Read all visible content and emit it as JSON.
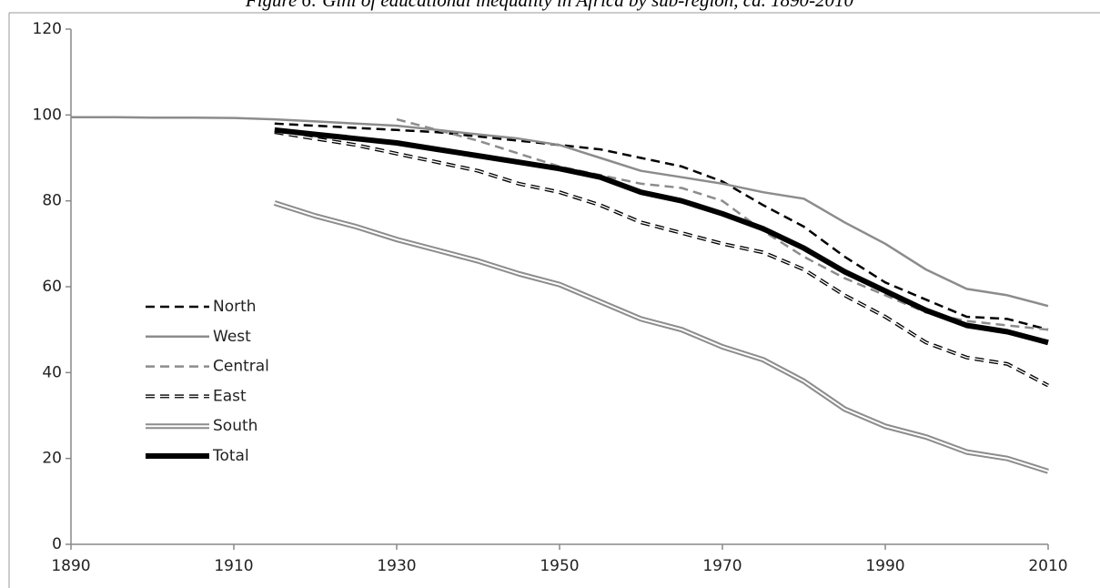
{
  "chart_data": {
    "type": "line",
    "title": "Figure 6: Gini of educational inequality in Africa by sub-region, ca. 1890-2010",
    "x": [
      1890,
      1895,
      1900,
      1905,
      1910,
      1915,
      1920,
      1925,
      1930,
      1935,
      1940,
      1945,
      1950,
      1955,
      1960,
      1965,
      1970,
      1975,
      1980,
      1985,
      1990,
      1995,
      2000,
      2005,
      2010
    ],
    "xlim": [
      1890,
      2010
    ],
    "xticks": [
      1890,
      1910,
      1930,
      1950,
      1970,
      1990,
      2010
    ],
    "ylim": [
      0,
      120
    ],
    "yticks": [
      0,
      20,
      40,
      60,
      80,
      100,
      120
    ],
    "legend": "left",
    "series": [
      {
        "name": "North",
        "color": "#000000",
        "width": 2.5,
        "dash": true,
        "double": false,
        "values": [
          null,
          null,
          null,
          null,
          null,
          98,
          97.5,
          97,
          96.5,
          96,
          95,
          94,
          93,
          92,
          90,
          88,
          84.5,
          79,
          74,
          67,
          61,
          57,
          53,
          52.5,
          50
        ]
      },
      {
        "name": "West",
        "color": "#8c8c8c",
        "width": 2.5,
        "dash": false,
        "double": false,
        "values": [
          99.5,
          99.5,
          99.4,
          99.4,
          99.3,
          99,
          98.5,
          98,
          97.5,
          96.5,
          95.5,
          94.5,
          93,
          90,
          87,
          85.5,
          84,
          82,
          80.5,
          75,
          70,
          64,
          59.5,
          58,
          55.5
        ]
      },
      {
        "name": "Central",
        "color": "#8c8c8c",
        "width": 2.5,
        "dash": true,
        "double": false,
        "values": [
          null,
          null,
          null,
          null,
          null,
          null,
          null,
          null,
          99,
          96.5,
          94,
          91,
          88,
          86,
          84,
          83,
          80,
          73,
          67,
          62,
          58,
          54,
          52,
          51,
          50
        ]
      },
      {
        "name": "East",
        "color": "#000000",
        "width": 4,
        "dash": true,
        "double": true,
        "values": [
          null,
          null,
          null,
          null,
          null,
          96,
          94.5,
          93,
          91,
          89,
          87,
          84,
          82,
          79,
          75,
          72.5,
          70,
          68,
          64,
          58,
          53,
          47,
          43.5,
          42,
          37
        ]
      },
      {
        "name": "South",
        "color": "#8c8c8c",
        "width": 6,
        "dash": false,
        "double": true,
        "values": [
          null,
          null,
          null,
          null,
          null,
          79.5,
          76.5,
          74,
          71,
          68.5,
          66,
          63,
          60.5,
          56.5,
          52.5,
          50,
          46,
          43,
          38,
          31.5,
          27.5,
          25,
          21.5,
          20,
          17
        ]
      },
      {
        "name": "Total",
        "color": "#000000",
        "width": 6,
        "dash": false,
        "double": false,
        "values": [
          null,
          null,
          null,
          null,
          null,
          96.5,
          95.5,
          94.5,
          93.5,
          92,
          90.5,
          89,
          87.5,
          85.5,
          82,
          80,
          77,
          73.5,
          69,
          63.5,
          59,
          54.5,
          51,
          49.5,
          47
        ]
      }
    ]
  }
}
